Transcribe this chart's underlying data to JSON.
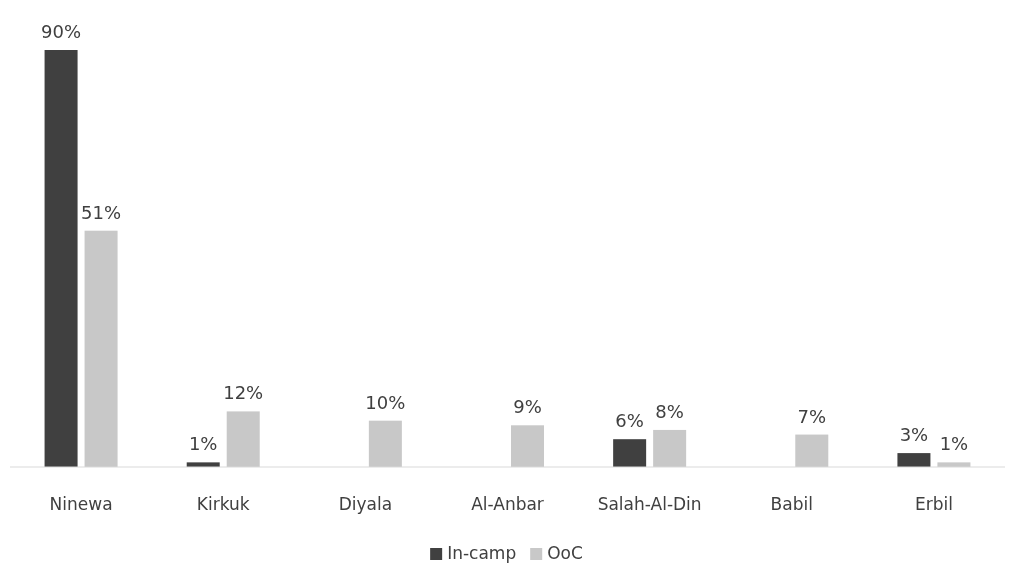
{
  "chart_data": {
    "type": "bar",
    "categories": [
      "Ninewa",
      "Kirkuk",
      "Diyala",
      "Al-Anbar",
      "Salah-Al-Din",
      "Babil",
      "Erbil"
    ],
    "series": [
      {
        "name": "In-camp",
        "color": "#404040",
        "values": [
          90,
          1,
          null,
          null,
          6,
          null,
          3
        ],
        "value_labels": [
          "90%",
          "1%",
          null,
          null,
          "6%",
          null,
          "3%"
        ]
      },
      {
        "name": "OoC",
        "color": "#c8c8c8",
        "values": [
          51,
          12,
          10,
          9,
          8,
          7,
          1
        ],
        "value_labels": [
          "51%",
          "12%",
          "10%",
          "9%",
          "8%",
          "7%",
          "1%"
        ]
      }
    ],
    "tick_labels": "x",
    "legend": "bottom"
  }
}
